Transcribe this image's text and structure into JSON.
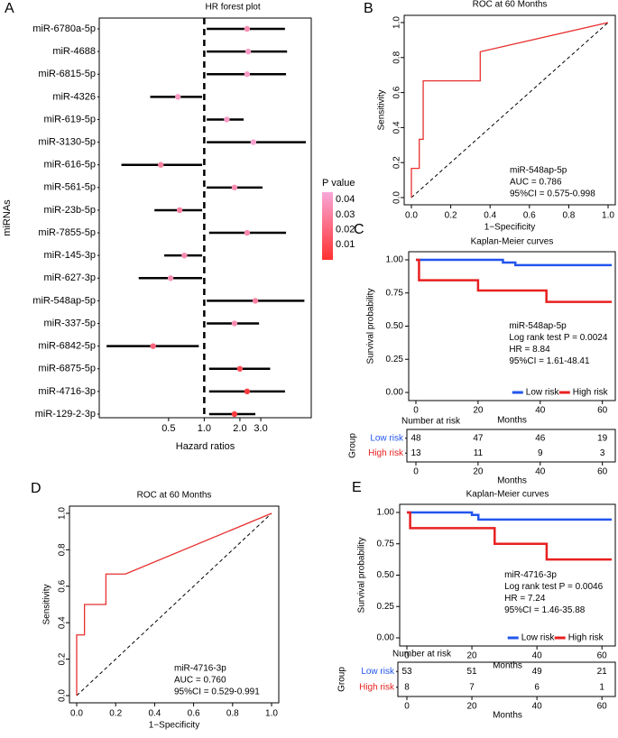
{
  "colors": {
    "forest_dot_low_p": "#ff3030",
    "forest_dot_high_p": "#f8a8d8",
    "roc_line": "#e83030",
    "low_risk": "#2255ee",
    "high_risk": "#e82020",
    "black": "#000000"
  },
  "chart_data": [
    {
      "panel": "A",
      "type": "forest",
      "title": "HR forest plot",
      "xlabel": "Hazard ratios",
      "ylabel": "miRNAs",
      "x_scale": "log",
      "reference_line": 1.0,
      "xticks": [
        0.5,
        1.0,
        2.0,
        3.0
      ],
      "xtick_labels": [
        "0.5",
        "1.0",
        "2.0",
        "3.0"
      ],
      "legend": {
        "title": "P value",
        "ticks": [
          "0.04",
          "0.03",
          "0.02",
          "0.01"
        ],
        "range": [
          0,
          0.045
        ]
      },
      "rows": [
        {
          "label": "miR-6780a-5p",
          "hr": 2.3,
          "lo": 1.05,
          "hi": 4.8,
          "p": 0.035
        },
        {
          "label": "miR-4688",
          "hr": 2.35,
          "lo": 1.05,
          "hi": 5.0,
          "p": 0.04
        },
        {
          "label": "miR-6815-5p",
          "hr": 2.3,
          "lo": 1.05,
          "hi": 4.9,
          "p": 0.04
        },
        {
          "label": "miR-4326",
          "hr": 0.6,
          "lo": 0.35,
          "hi": 0.96,
          "p": 0.04
        },
        {
          "label": "miR-619-5p",
          "hr": 1.55,
          "lo": 1.05,
          "hi": 2.15,
          "p": 0.04
        },
        {
          "label": "miR-3130-5p",
          "hr": 2.6,
          "lo": 1.05,
          "hi": 7.2,
          "p": 0.043
        },
        {
          "label": "miR-616-5p",
          "hr": 0.43,
          "lo": 0.2,
          "hi": 0.96,
          "p": 0.03
        },
        {
          "label": "miR-561-5p",
          "hr": 1.8,
          "lo": 1.05,
          "hi": 3.1,
          "p": 0.035
        },
        {
          "label": "miR-23b-5p",
          "hr": 0.62,
          "lo": 0.38,
          "hi": 0.96,
          "p": 0.03
        },
        {
          "label": "miR-7855-5p",
          "hr": 2.3,
          "lo": 1.1,
          "hi": 4.9,
          "p": 0.033
        },
        {
          "label": "miR-145-3p",
          "hr": 0.68,
          "lo": 0.46,
          "hi": 0.96,
          "p": 0.035
        },
        {
          "label": "miR-627-3p",
          "hr": 0.52,
          "lo": 0.28,
          "hi": 0.96,
          "p": 0.035
        },
        {
          "label": "miR-548ap-5p",
          "hr": 2.7,
          "lo": 1.05,
          "hi": 7.0,
          "p": 0.03
        },
        {
          "label": "miR-337-5p",
          "hr": 1.8,
          "lo": 1.05,
          "hi": 2.9,
          "p": 0.035
        },
        {
          "label": "miR-6842-5p",
          "hr": 0.37,
          "lo": 0.15,
          "hi": 0.9,
          "p": 0.02
        },
        {
          "label": "miR-6875-5p",
          "hr": 2.0,
          "lo": 1.1,
          "hi": 3.6,
          "p": 0.01
        },
        {
          "label": "miR-4716-3p",
          "hr": 2.3,
          "lo": 1.1,
          "hi": 4.8,
          "p": 0.004
        },
        {
          "label": "miR-129-2-3p",
          "hr": 1.8,
          "lo": 1.1,
          "hi": 2.7,
          "p": 0.004
        }
      ]
    },
    {
      "panel": "B",
      "type": "line",
      "title": "ROC at 60 Months",
      "xlabel": "1−Specificity",
      "ylabel": "Sensitivity",
      "xlim": [
        0,
        1
      ],
      "ylim": [
        0,
        1
      ],
      "ticks": [
        "0.0",
        "0.2",
        "0.4",
        "0.6",
        "0.8",
        "1.0"
      ],
      "roc_x": [
        0,
        0,
        0.04,
        0.04,
        0.06,
        0.06,
        0.1,
        0.1,
        0.35,
        0.35,
        1.0
      ],
      "roc_y": [
        0,
        0.167,
        0.167,
        0.333,
        0.333,
        0.667,
        0.667,
        0.667,
        0.667,
        0.833,
        1.0
      ],
      "annotations": [
        "miR-548ap-5p",
        "AUC = 0.786",
        "95%CI = 0.575-0.998"
      ]
    },
    {
      "panel": "C",
      "type": "line",
      "title": "Kaplan-Meier curves",
      "xlabel": "Months",
      "ylabel": "Survival probability",
      "xlim": [
        0,
        63
      ],
      "ylim": [
        0,
        1
      ],
      "xticks": [
        "0",
        "20",
        "40",
        "60"
      ],
      "yticks": [
        "0.00",
        "0.25",
        "0.50",
        "0.75",
        "1.00"
      ],
      "series": [
        {
          "name": "Low risk",
          "color": "#2255ee",
          "steps": [
            [
              0,
              1.0
            ],
            [
              28,
              1.0
            ],
            [
              28,
              0.98
            ],
            [
              32,
              0.98
            ],
            [
              32,
              0.96
            ],
            [
              63,
              0.96
            ]
          ]
        },
        {
          "name": "High risk",
          "color": "#e82020",
          "steps": [
            [
              0,
              1.0
            ],
            [
              1,
              1.0
            ],
            [
              1,
              0.846
            ],
            [
              20,
              0.846
            ],
            [
              20,
              0.769
            ],
            [
              42,
              0.769
            ],
            [
              42,
              0.683
            ],
            [
              63,
              0.683
            ]
          ]
        }
      ],
      "annotations": [
        "miR-548ap-5p",
        "Log rank test P = 0.0024",
        "HR = 8.84",
        "95%CI = 1.61-48.41"
      ],
      "risk_table": {
        "title": "Number at risk",
        "group_label": "Group",
        "rows": [
          {
            "name": "Low risk",
            "values": [
              "48",
              "47",
              "46",
              "19"
            ]
          },
          {
            "name": "High risk",
            "values": [
              "13",
              "11",
              "9",
              "3"
            ]
          }
        ],
        "xticks": [
          "0",
          "20",
          "40",
          "60"
        ],
        "xlabel": "Months"
      }
    },
    {
      "panel": "D",
      "type": "line",
      "title": "ROC at 60 Months",
      "xlabel": "1−Specificity",
      "ylabel": "Sensitivity",
      "xlim": [
        0,
        1
      ],
      "ylim": [
        0,
        1
      ],
      "ticks": [
        "0.0",
        "0.2",
        "0.4",
        "0.6",
        "0.8",
        "1.0"
      ],
      "roc_x": [
        0,
        0,
        0.04,
        0.04,
        0.15,
        0.15,
        0.25,
        1.0
      ],
      "roc_y": [
        0,
        0.333,
        0.333,
        0.5,
        0.5,
        0.667,
        0.667,
        1.0
      ],
      "annotations": [
        "miR-4716-3p",
        "AUC = 0.760",
        "95%CI = 0.529-0.991"
      ]
    },
    {
      "panel": "E",
      "type": "line",
      "title": "Kaplan-Meier curves",
      "xlabel": "Months",
      "ylabel": "Survival probability",
      "xlim": [
        0,
        63
      ],
      "ylim": [
        0,
        1
      ],
      "xticks": [
        "0",
        "20",
        "40",
        "60"
      ],
      "yticks": [
        "0.00",
        "0.25",
        "0.50",
        "0.75",
        "1.00"
      ],
      "series": [
        {
          "name": "Low risk",
          "color": "#2255ee",
          "steps": [
            [
              0,
              1.0
            ],
            [
              20,
              1.0
            ],
            [
              20,
              0.98
            ],
            [
              22,
              0.98
            ],
            [
              22,
              0.943
            ],
            [
              63,
              0.943
            ]
          ]
        },
        {
          "name": "High risk",
          "color": "#e82020",
          "steps": [
            [
              0,
              1.0
            ],
            [
              1,
              1.0
            ],
            [
              1,
              0.875
            ],
            [
              27,
              0.875
            ],
            [
              27,
              0.75
            ],
            [
              43,
              0.75
            ],
            [
              43,
              0.625
            ],
            [
              63,
              0.625
            ]
          ]
        }
      ],
      "annotations": [
        "miR-4716-3p",
        "Log rank test P = 0.0046",
        "HR = 7.24",
        "95%CI = 1.46-35.88"
      ],
      "risk_table": {
        "title": "Number at risk",
        "group_label": "Group",
        "rows": [
          {
            "name": "Low risk",
            "values": [
              "53",
              "51",
              "49",
              "21"
            ]
          },
          {
            "name": "High risk",
            "values": [
              "8",
              "7",
              "6",
              "1"
            ]
          }
        ],
        "xticks": [
          "0",
          "20",
          "40",
          "60"
        ],
        "xlabel": "Months"
      }
    }
  ],
  "panel_letters": [
    "A",
    "B",
    "C",
    "D",
    "E"
  ]
}
